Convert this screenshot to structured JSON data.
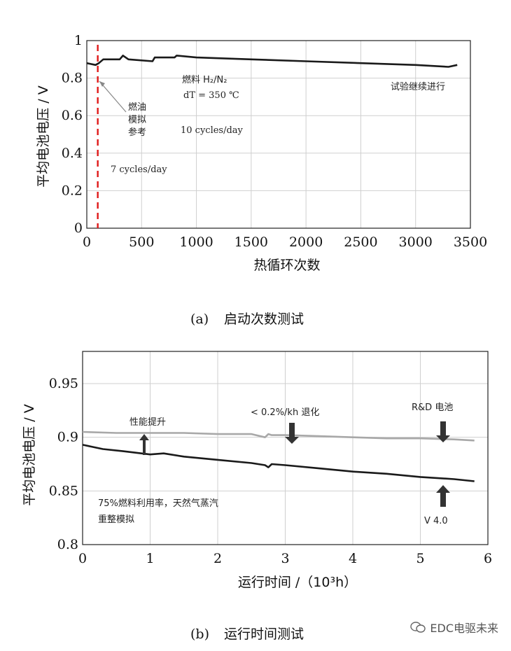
{
  "panel_a": {
    "caption_letter": "(a)",
    "caption_text": "启动次数测试",
    "annotations": {
      "fuel": "燃料 H₂/N₂",
      "dt": "dT = 350 ℃",
      "rate_10": "10 cycles/day",
      "rate_7": "7 cycles/day",
      "fuel_oil_1": "燃油",
      "fuel_oil_2": "模拟",
      "fuel_oil_3": "参考",
      "continuing": "试验继续进行"
    }
  },
  "panel_b": {
    "caption_letter": "(b)",
    "caption_text": "运行时间测试",
    "annotations": {
      "improve": "性能提升",
      "degradation": "< 0.2%/kh 退化",
      "rnd_cell": "R&D 电池",
      "sim_1": "75%燃料利用率，天然气蒸汽",
      "sim_2": "重整模拟",
      "v40": "V 4.0"
    }
  },
  "watermark": "EDC电驱未来",
  "chart_data": [
    {
      "type": "line",
      "xlabel": "热循环次数",
      "ylabel": "平均电池电压 / V",
      "xlim": [
        0,
        3500
      ],
      "ylim": [
        0,
        1
      ],
      "xticks": [
        0,
        500,
        1000,
        1500,
        2000,
        2500,
        3000,
        3500
      ],
      "yticks": [
        0,
        0.2,
        0.4,
        0.6,
        0.8,
        1
      ],
      "ytick_labels": [
        "0",
        "0.2",
        "0.4",
        "0.6",
        "0.8",
        "1"
      ],
      "grid": true,
      "series": [
        {
          "color": "#1a1a1a",
          "x": [
            0,
            80,
            110,
            150,
            300,
            330,
            380,
            600,
            620,
            800,
            820,
            1000,
            1500,
            2000,
            2500,
            3000,
            3300,
            3380
          ],
          "y": [
            0.88,
            0.87,
            0.88,
            0.9,
            0.9,
            0.92,
            0.9,
            0.89,
            0.91,
            0.91,
            0.92,
            0.91,
            0.9,
            0.89,
            0.88,
            0.87,
            0.86,
            0.87
          ]
        }
      ],
      "vline": {
        "x": 100,
        "color": "#e01818",
        "style": "dashed"
      }
    },
    {
      "type": "line",
      "xlabel": "运行时间 /（10³h）",
      "ylabel": "平均电池电压 / V",
      "xlim": [
        0,
        6
      ],
      "ylim": [
        0.8,
        0.98
      ],
      "xticks": [
        0,
        1,
        2,
        3,
        4,
        5,
        6
      ],
      "yticks": [
        0.8,
        0.85,
        0.9,
        0.95
      ],
      "ytick_labels": [
        "0.8",
        "0.85",
        "0.9",
        "0.95"
      ],
      "grid": true,
      "series": [
        {
          "color": "#a8a8a8",
          "x": [
            0,
            0.5,
            1.0,
            1.5,
            2.0,
            2.5,
            2.7,
            2.75,
            2.8,
            3.0,
            3.5,
            4.0,
            4.5,
            5.0,
            5.5,
            5.8
          ],
          "y": [
            0.905,
            0.904,
            0.904,
            0.904,
            0.903,
            0.903,
            0.9,
            0.903,
            0.902,
            0.902,
            0.901,
            0.9,
            0.899,
            0.899,
            0.898,
            0.897
          ]
        },
        {
          "color": "#1a1a1a",
          "x": [
            0,
            0.3,
            0.6,
            1.0,
            1.2,
            1.5,
            2.0,
            2.5,
            2.7,
            2.75,
            2.8,
            3.0,
            3.5,
            4.0,
            4.5,
            5.0,
            5.5,
            5.8
          ],
          "y": [
            0.893,
            0.889,
            0.887,
            0.884,
            0.885,
            0.882,
            0.879,
            0.876,
            0.874,
            0.872,
            0.875,
            0.874,
            0.871,
            0.868,
            0.866,
            0.863,
            0.861,
            0.859
          ]
        }
      ]
    }
  ]
}
